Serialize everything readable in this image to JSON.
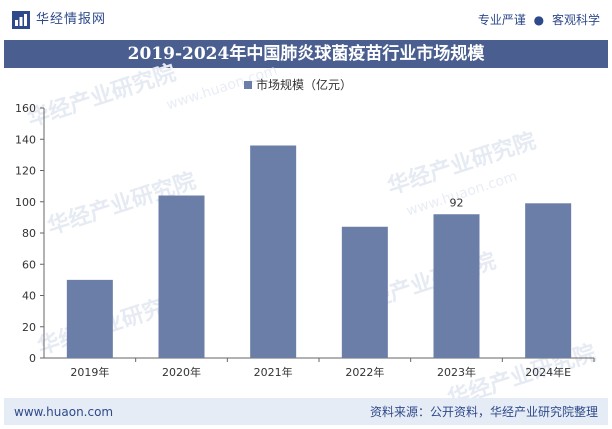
{
  "header": {
    "brand": "华经情报网",
    "tag_left": "专业严谨",
    "separator": "●",
    "tag_right": "客观科学"
  },
  "title": "2019-2024年中国肺炎球菌疫苗行业市场规模",
  "watermark": {
    "text": "华经产业研究院",
    "url": "www.huaon.com"
  },
  "footer": {
    "url": "www.huaon.com",
    "source": "资料来源：公开资料，华经产业研究院整理"
  },
  "colors": {
    "bar": "#6b7ea8",
    "title_bg": "#4a5f8f",
    "brand": "#2e4a8a",
    "footer_bg": "#e6ecf6"
  },
  "chart_data": {
    "type": "bar",
    "title": "2019-2024年中国肺炎球菌疫苗行业市场规模",
    "categories": [
      "2019年",
      "2020年",
      "2021年",
      "2022年",
      "2023年",
      "2024年E"
    ],
    "series": [
      {
        "name": "市场规模（亿元）",
        "values": [
          50,
          104,
          136,
          84,
          92,
          99
        ]
      }
    ],
    "data_labels": {
      "2023年": "92"
    },
    "ylim": [
      0,
      160
    ],
    "yticks": [
      0,
      20,
      40,
      60,
      80,
      100,
      120,
      140,
      160
    ],
    "legend": "top-center",
    "grid": false,
    "xlabel": "",
    "ylabel": ""
  }
}
